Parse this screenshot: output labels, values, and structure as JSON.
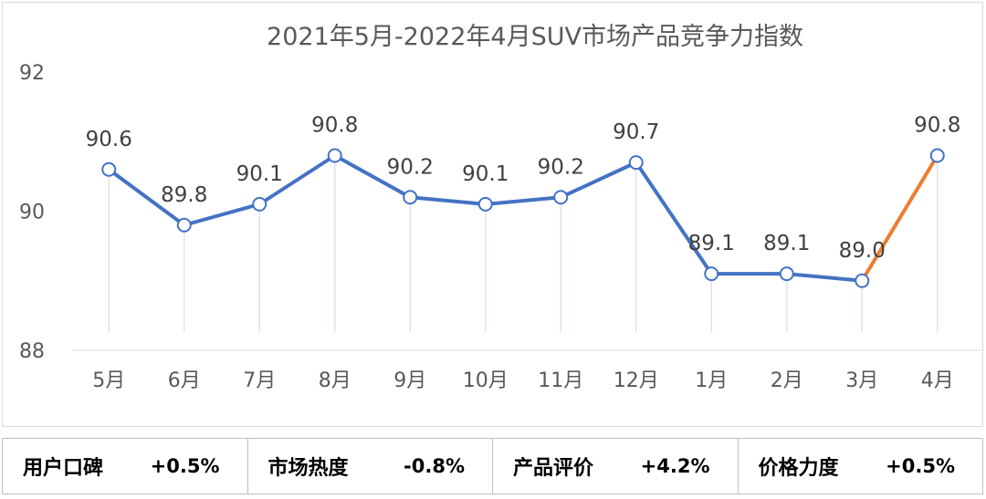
{
  "chart_data": {
    "type": "line",
    "title": "2021年5月-2022年4月SUV市场产品竞争力指数",
    "categories": [
      "5月",
      "6月",
      "7月",
      "8月",
      "9月",
      "10月",
      "11月",
      "12月",
      "1月",
      "2月",
      "3月",
      "4月"
    ],
    "values": [
      90.6,
      89.8,
      90.1,
      90.8,
      90.2,
      90.1,
      90.2,
      90.7,
      89.1,
      89.1,
      89.0,
      90.8
    ],
    "value_labels": [
      "90.6",
      "89.8",
      "90.1",
      "90.8",
      "90.2",
      "90.1",
      "90.2",
      "90.7",
      "89.1",
      "89.1",
      "89.0",
      "90.8"
    ],
    "ylim": [
      88,
      92
    ],
    "yticks": [
      "88",
      "90",
      "92"
    ],
    "xlabel": "",
    "ylabel": "",
    "grid": false,
    "line_color": "#4472c4",
    "highlight_color": "#ed7d31",
    "highlight_last_segment": true
  },
  "metrics": [
    {
      "label": "用户口碑",
      "value": "+0.5%"
    },
    {
      "label": "市场热度",
      "value": "-0.8%"
    },
    {
      "label": "产品评价",
      "value": "+4.2%"
    },
    {
      "label": "价格力度",
      "value": "+0.5%"
    }
  ]
}
